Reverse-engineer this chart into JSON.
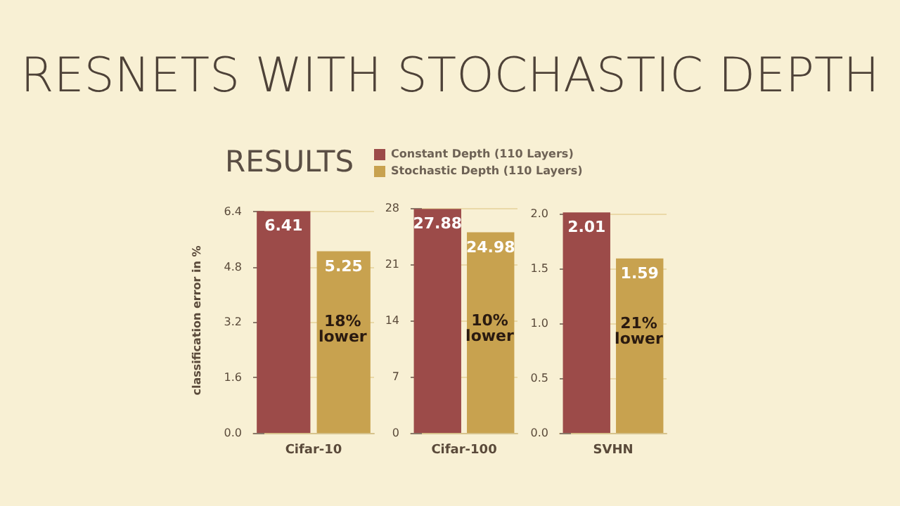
{
  "chart_data": [
    {
      "type": "bar",
      "title": "RESNETS WITH STOCHASTIC DEPTH",
      "subtitle": "RESULTS",
      "ylabel": "classification error in %",
      "categories": [
        "Cifar-10"
      ],
      "series": [
        {
          "name": "Constant Depth (110 Layers)",
          "color": "#9c4b49",
          "values": [
            6.41
          ]
        },
        {
          "name": "Stochastic Depth (110 Layers)",
          "color": "#c8a24f",
          "values": [
            5.25
          ]
        }
      ],
      "ylim": [
        0,
        6.5
      ],
      "yticks": [
        {
          "value": 0,
          "label": "0.0"
        },
        1.6,
        3.2,
        4.8,
        6.4
      ],
      "grid": "y",
      "legend": "top",
      "data_labels": true,
      "annotations": [
        {
          "text": "18%\nlower",
          "x": "Cifar-10",
          "y": 3.0
        }
      ]
    },
    {
      "type": "bar",
      "categories": [
        "Cifar-100"
      ],
      "series": [
        {
          "color": "#9c4b49",
          "values": [
            27.88
          ]
        },
        {
          "color": "#c8a24f",
          "values": [
            24.98
          ]
        }
      ],
      "ylim": [
        0,
        28
      ],
      "yticks": [
        0,
        7,
        14,
        21,
        28
      ],
      "grid": "y",
      "data_labels": true,
      "annotations": [
        {
          "text": "10%\nlower",
          "x": "Cifar-100",
          "y": 13
        }
      ]
    },
    {
      "type": "bar",
      "categories": [
        "SVHN"
      ],
      "series": [
        {
          "color": "#9c4b49",
          "values": [
            2.01
          ]
        },
        {
          "color": "#c8a24f",
          "values": [
            1.59
          ]
        }
      ],
      "ylim": [
        0,
        2.05
      ],
      "yticks": [
        {
          "value": 0,
          "label": "0.0"
        },
        0.5,
        {
          "value": 1,
          "label": "1.0"
        },
        1.5,
        {
          "value": 2,
          "label": "2.0"
        }
      ],
      "grid": "y",
      "data_labels": true,
      "annotations": [
        {
          "text": "21%\nlower",
          "x": "SVHN",
          "y": 0.93
        }
      ]
    }
  ]
}
